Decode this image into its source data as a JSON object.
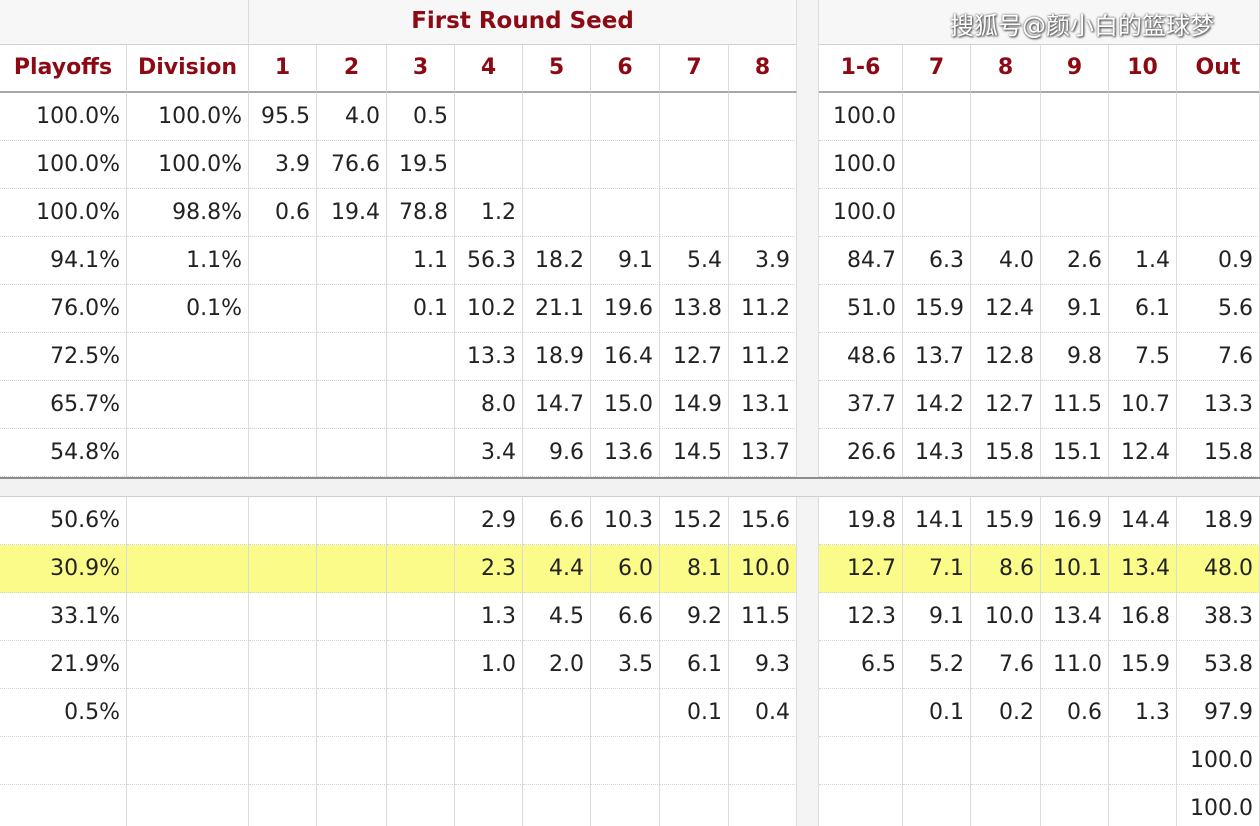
{
  "header": {
    "group_title": "First Round Seed",
    "watermark": "搜狐号@颜小白的篮球梦",
    "columns": [
      "Playoffs",
      "Division",
      "1",
      "2",
      "3",
      "4",
      "5",
      "6",
      "7",
      "8",
      "1-6",
      "7",
      "8",
      "9",
      "10",
      "Out"
    ]
  },
  "table": {
    "rows": [
      [
        "100.0%",
        "100.0%",
        "95.5",
        "4.0",
        "0.5",
        null,
        null,
        null,
        null,
        null,
        "100.0",
        null,
        null,
        null,
        null,
        null
      ],
      [
        "100.0%",
        "100.0%",
        "3.9",
        "76.6",
        "19.5",
        null,
        null,
        null,
        null,
        null,
        "100.0",
        null,
        null,
        null,
        null,
        null
      ],
      [
        "100.0%",
        "98.8%",
        "0.6",
        "19.4",
        "78.8",
        "1.2",
        null,
        null,
        null,
        null,
        "100.0",
        null,
        null,
        null,
        null,
        null
      ],
      [
        "94.1%",
        "1.1%",
        null,
        null,
        "1.1",
        "56.3",
        "18.2",
        "9.1",
        "5.4",
        "3.9",
        "84.7",
        "6.3",
        "4.0",
        "2.6",
        "1.4",
        "0.9"
      ],
      [
        "76.0%",
        "0.1%",
        null,
        null,
        "0.1",
        "10.2",
        "21.1",
        "19.6",
        "13.8",
        "11.2",
        "51.0",
        "15.9",
        "12.4",
        "9.1",
        "6.1",
        "5.6"
      ],
      [
        "72.5%",
        null,
        null,
        null,
        null,
        "13.3",
        "18.9",
        "16.4",
        "12.7",
        "11.2",
        "48.6",
        "13.7",
        "12.8",
        "9.8",
        "7.5",
        "7.6"
      ],
      [
        "65.7%",
        null,
        null,
        null,
        null,
        "8.0",
        "14.7",
        "15.0",
        "14.9",
        "13.1",
        "37.7",
        "14.2",
        "12.7",
        "11.5",
        "10.7",
        "13.3"
      ],
      [
        "54.8%",
        null,
        null,
        null,
        null,
        "3.4",
        "9.6",
        "13.6",
        "14.5",
        "13.7",
        "26.6",
        "14.3",
        "15.8",
        "15.1",
        "12.4",
        "15.8"
      ],
      [
        "50.6%",
        null,
        null,
        null,
        null,
        "2.9",
        "6.6",
        "10.3",
        "15.2",
        "15.6",
        "19.8",
        "14.1",
        "15.9",
        "16.9",
        "14.4",
        "18.9"
      ],
      [
        "30.9%",
        null,
        null,
        null,
        null,
        "2.3",
        "4.4",
        "6.0",
        "8.1",
        "10.0",
        "12.7",
        "7.1",
        "8.6",
        "10.1",
        "13.4",
        "48.0"
      ],
      [
        "33.1%",
        null,
        null,
        null,
        null,
        "1.3",
        "4.5",
        "6.6",
        "9.2",
        "11.5",
        "12.3",
        "9.1",
        "10.0",
        "13.4",
        "16.8",
        "38.3"
      ],
      [
        "21.9%",
        null,
        null,
        null,
        null,
        "1.0",
        "2.0",
        "3.5",
        "6.1",
        "9.3",
        "6.5",
        "5.2",
        "7.6",
        "11.0",
        "15.9",
        "53.8"
      ],
      [
        "0.5%",
        null,
        null,
        null,
        null,
        null,
        null,
        null,
        "0.1",
        "0.4",
        null,
        "0.1",
        "0.2",
        "0.6",
        "1.3",
        "97.9"
      ],
      [
        null,
        null,
        null,
        null,
        null,
        null,
        null,
        null,
        null,
        null,
        null,
        null,
        null,
        null,
        null,
        "100.0"
      ],
      [
        null,
        null,
        null,
        null,
        null,
        null,
        null,
        null,
        null,
        null,
        null,
        null,
        null,
        null,
        null,
        "100.0"
      ]
    ]
  }
}
